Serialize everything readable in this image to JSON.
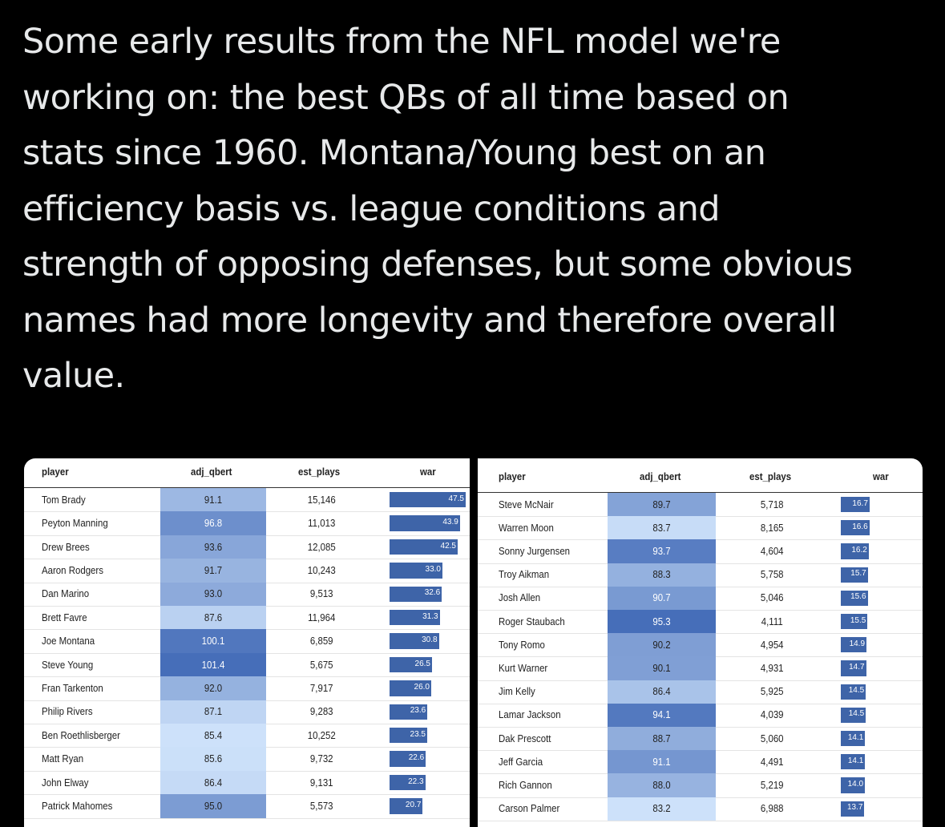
{
  "post": {
    "text_lines": [
      "Some early results from the NFL model we're",
      "working on: the best QBs of all time based on",
      "stats since 1960. Montana/Young best on an",
      "efficiency basis vs. league conditions and",
      "strength of opposing defenses, but some obvious",
      "names had more longevity and therefore overall",
      "value."
    ]
  },
  "tables": [
    {
      "header": [
        "player",
        "adj_qbert",
        "est_plays",
        "war"
      ],
      "rows": [
        [
          "Tom Brady",
          "91.1",
          "15,146",
          "47.5"
        ],
        [
          "Peyton Manning",
          "96.8",
          "11,013",
          "43.9"
        ],
        [
          "Drew Brees",
          "93.6",
          "12,085",
          "42.5"
        ],
        [
          "Aaron Rodgers",
          "91.7",
          "10,243",
          "33.0"
        ],
        [
          "Dan Marino",
          "93.0",
          "9,513",
          "32.6"
        ],
        [
          "Brett Favre",
          "87.6",
          "11,964",
          "31.3"
        ],
        [
          "Joe Montana",
          "100.1",
          "6,859",
          "30.8"
        ],
        [
          "Steve Young",
          "101.4",
          "5,675",
          "26.5"
        ],
        [
          "Fran Tarkenton",
          "92.0",
          "7,917",
          "26.0"
        ],
        [
          "Philip Rivers",
          "87.1",
          "9,283",
          "23.6"
        ],
        [
          "Ben Roethlisberger",
          "85.4",
          "10,252",
          "23.5"
        ],
        [
          "Matt Ryan",
          "85.6",
          "9,732",
          "22.6"
        ],
        [
          "John Elway",
          "86.4",
          "9,131",
          "22.3"
        ],
        [
          "Patrick Mahomes",
          "95.0",
          "5,573",
          "20.7"
        ]
      ]
    },
    {
      "header": [
        "player",
        "adj_qbert",
        "est_plays",
        "war"
      ],
      "rows": [
        [
          "Steve McNair",
          "89.7",
          "5,718",
          "16.7"
        ],
        [
          "Warren Moon",
          "83.7",
          "8,165",
          "16.6"
        ],
        [
          "Sonny Jurgensen",
          "93.7",
          "4,604",
          "16.2"
        ],
        [
          "Troy Aikman",
          "88.3",
          "5,758",
          "15.7"
        ],
        [
          "Josh Allen",
          "90.7",
          "5,046",
          "15.6"
        ],
        [
          "Roger Staubach",
          "95.3",
          "4,111",
          "15.5"
        ],
        [
          "Tony Romo",
          "90.2",
          "4,954",
          "14.9"
        ],
        [
          "Kurt Warner",
          "90.1",
          "4,931",
          "14.7"
        ],
        [
          "Jim Kelly",
          "86.4",
          "5,925",
          "14.5"
        ],
        [
          "Lamar Jackson",
          "94.1",
          "4,039",
          "14.5"
        ],
        [
          "Dak Prescott",
          "88.7",
          "5,060",
          "14.1"
        ],
        [
          "Jeff Garcia",
          "91.1",
          "4,491",
          "14.1"
        ],
        [
          "Rich Gannon",
          "88.0",
          "5,219",
          "14.0"
        ],
        [
          "Carson Palmer",
          "83.2",
          "6,988",
          "13.7"
        ]
      ]
    }
  ]
}
